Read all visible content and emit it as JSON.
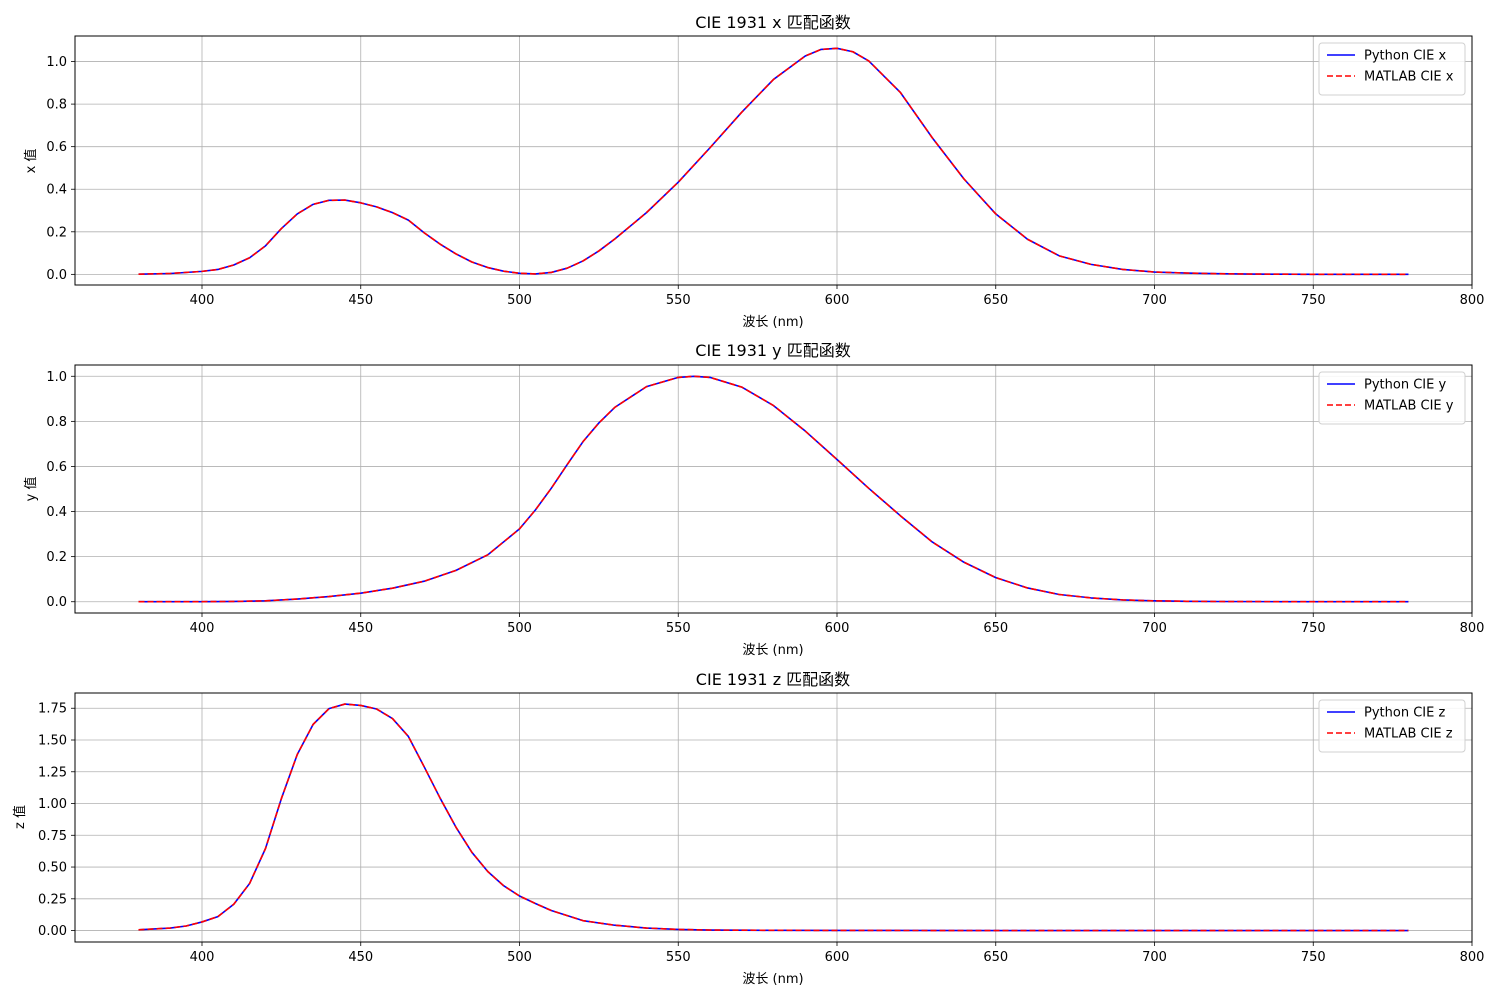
{
  "chart_data": [
    {
      "type": "line",
      "title": "CIE 1931 x 匹配函数",
      "xlabel": "波长 (nm)",
      "ylabel": "x 值",
      "xlim": [
        360,
        800
      ],
      "ylim": [
        -0.05,
        1.12
      ],
      "xticks": [
        400,
        450,
        500,
        550,
        600,
        650,
        700,
        750,
        800
      ],
      "yticks": [
        0.0,
        0.2,
        0.4,
        0.6,
        0.8,
        1.0
      ],
      "ytick_labels": [
        "0.0",
        "0.2",
        "0.4",
        "0.6",
        "0.8",
        "1.0"
      ],
      "grid": true,
      "legend_position": "top-right",
      "x": [
        380,
        390,
        400,
        405,
        410,
        415,
        420,
        425,
        430,
        435,
        440,
        445,
        450,
        455,
        460,
        465,
        470,
        475,
        480,
        485,
        490,
        495,
        500,
        505,
        510,
        515,
        520,
        525,
        530,
        540,
        550,
        560,
        570,
        580,
        590,
        595,
        600,
        605,
        610,
        620,
        630,
        640,
        650,
        660,
        670,
        680,
        690,
        700,
        710,
        720,
        730,
        740,
        750,
        760,
        770,
        780
      ],
      "series": [
        {
          "name": "Python CIE x",
          "color": "#0000ff",
          "dash": "solid",
          "values": [
            0.001,
            0.004,
            0.014,
            0.023,
            0.044,
            0.078,
            0.134,
            0.215,
            0.284,
            0.329,
            0.348,
            0.349,
            0.336,
            0.317,
            0.29,
            0.255,
            0.195,
            0.142,
            0.096,
            0.058,
            0.032,
            0.015,
            0.005,
            0.002,
            0.009,
            0.029,
            0.063,
            0.11,
            0.166,
            0.29,
            0.433,
            0.595,
            0.762,
            0.916,
            1.026,
            1.057,
            1.062,
            1.046,
            1.003,
            0.854,
            0.642,
            0.448,
            0.284,
            0.165,
            0.087,
            0.047,
            0.023,
            0.011,
            0.006,
            0.003,
            0.0015,
            0.0007,
            0.0003,
            0.0002,
            0.0001,
            0.0
          ]
        },
        {
          "name": "MATLAB CIE x",
          "color": "#ff0000",
          "dash": "dashed",
          "values": [
            0.001,
            0.004,
            0.014,
            0.023,
            0.044,
            0.078,
            0.134,
            0.215,
            0.284,
            0.329,
            0.348,
            0.349,
            0.336,
            0.317,
            0.29,
            0.255,
            0.195,
            0.142,
            0.096,
            0.058,
            0.032,
            0.015,
            0.005,
            0.002,
            0.009,
            0.029,
            0.063,
            0.11,
            0.166,
            0.29,
            0.433,
            0.595,
            0.762,
            0.916,
            1.026,
            1.057,
            1.062,
            1.046,
            1.003,
            0.854,
            0.642,
            0.448,
            0.284,
            0.165,
            0.087,
            0.047,
            0.023,
            0.011,
            0.006,
            0.003,
            0.0015,
            0.0007,
            0.0003,
            0.0002,
            0.0001,
            0.0
          ]
        }
      ]
    },
    {
      "type": "line",
      "title": "CIE 1931 y 匹配函数",
      "xlabel": "波长 (nm)",
      "ylabel": "y 值",
      "xlim": [
        360,
        800
      ],
      "ylim": [
        -0.05,
        1.05
      ],
      "xticks": [
        400,
        450,
        500,
        550,
        600,
        650,
        700,
        750,
        800
      ],
      "yticks": [
        0.0,
        0.2,
        0.4,
        0.6,
        0.8,
        1.0
      ],
      "ytick_labels": [
        "0.0",
        "0.2",
        "0.4",
        "0.6",
        "0.8",
        "1.0"
      ],
      "grid": true,
      "legend_position": "top-right",
      "x": [
        380,
        390,
        400,
        410,
        420,
        430,
        440,
        450,
        460,
        470,
        480,
        490,
        500,
        505,
        510,
        515,
        520,
        525,
        530,
        540,
        550,
        555,
        560,
        570,
        580,
        590,
        600,
        610,
        620,
        630,
        640,
        650,
        660,
        670,
        680,
        690,
        700,
        710,
        720,
        740,
        760,
        780
      ],
      "series": [
        {
          "name": "Python CIE y",
          "color": "#0000ff",
          "dash": "solid",
          "values": [
            0.0,
            0.0001,
            0.0004,
            0.0012,
            0.004,
            0.012,
            0.023,
            0.038,
            0.06,
            0.091,
            0.139,
            0.208,
            0.323,
            0.407,
            0.503,
            0.608,
            0.71,
            0.793,
            0.862,
            0.954,
            0.995,
            1.0,
            0.995,
            0.952,
            0.87,
            0.757,
            0.631,
            0.503,
            0.381,
            0.265,
            0.175,
            0.107,
            0.061,
            0.032,
            0.017,
            0.008,
            0.004,
            0.002,
            0.001,
            0.0003,
            0.0001,
            0.0
          ]
        },
        {
          "name": "MATLAB CIE y",
          "color": "#ff0000",
          "dash": "dashed",
          "values": [
            0.0,
            0.0001,
            0.0004,
            0.0012,
            0.004,
            0.012,
            0.023,
            0.038,
            0.06,
            0.091,
            0.139,
            0.208,
            0.323,
            0.407,
            0.503,
            0.608,
            0.71,
            0.793,
            0.862,
            0.954,
            0.995,
            1.0,
            0.995,
            0.952,
            0.87,
            0.757,
            0.631,
            0.503,
            0.381,
            0.265,
            0.175,
            0.107,
            0.061,
            0.032,
            0.017,
            0.008,
            0.004,
            0.002,
            0.001,
            0.0003,
            0.0001,
            0.0
          ]
        }
      ]
    },
    {
      "type": "line",
      "title": "CIE 1931 z 匹配函数",
      "xlabel": "波长 (nm)",
      "ylabel": "z 值",
      "xlim": [
        360,
        800
      ],
      "ylim": [
        -0.09,
        1.87
      ],
      "xticks": [
        400,
        450,
        500,
        550,
        600,
        650,
        700,
        750,
        800
      ],
      "yticks": [
        0.0,
        0.25,
        0.5,
        0.75,
        1.0,
        1.25,
        1.5,
        1.75
      ],
      "ytick_labels": [
        "0.00",
        "0.25",
        "0.50",
        "0.75",
        "1.00",
        "1.25",
        "1.50",
        "1.75"
      ],
      "grid": true,
      "legend_position": "top-right",
      "x": [
        380,
        390,
        395,
        400,
        405,
        410,
        415,
        420,
        425,
        430,
        435,
        440,
        445,
        450,
        455,
        460,
        465,
        470,
        475,
        480,
        485,
        490,
        495,
        500,
        505,
        510,
        520,
        530,
        540,
        550,
        560,
        580,
        600,
        650,
        700,
        780
      ],
      "series": [
        {
          "name": "Python CIE z",
          "color": "#0000ff",
          "dash": "solid",
          "values": [
            0.006,
            0.02,
            0.036,
            0.068,
            0.11,
            0.207,
            0.371,
            0.646,
            1.039,
            1.386,
            1.623,
            1.747,
            1.783,
            1.772,
            1.744,
            1.669,
            1.528,
            1.288,
            1.042,
            0.813,
            0.616,
            0.465,
            0.353,
            0.272,
            0.213,
            0.158,
            0.078,
            0.042,
            0.02,
            0.009,
            0.004,
            0.002,
            0.001,
            0.0,
            0.0,
            0.0
          ]
        },
        {
          "name": "MATLAB CIE z",
          "color": "#ff0000",
          "dash": "dashed",
          "values": [
            0.006,
            0.02,
            0.036,
            0.068,
            0.11,
            0.207,
            0.371,
            0.646,
            1.039,
            1.386,
            1.623,
            1.747,
            1.783,
            1.772,
            1.744,
            1.669,
            1.528,
            1.288,
            1.042,
            0.813,
            0.616,
            0.465,
            0.353,
            0.272,
            0.213,
            0.158,
            0.078,
            0.042,
            0.02,
            0.009,
            0.004,
            0.002,
            0.001,
            0.0,
            0.0,
            0.0
          ]
        }
      ]
    }
  ]
}
